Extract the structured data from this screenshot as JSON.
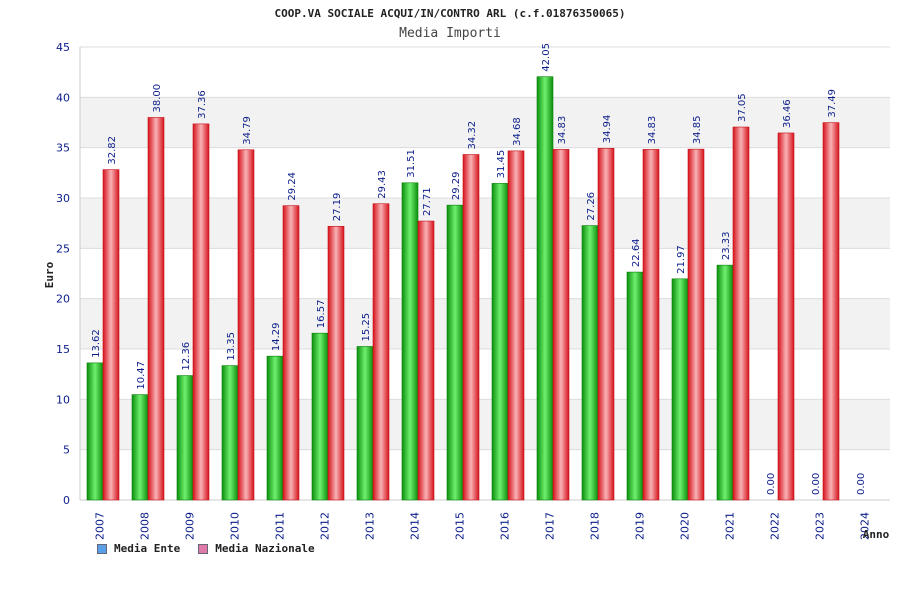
{
  "chart_data": {
    "type": "bar",
    "title": "COOP.VA SOCIALE ACQUI/IN/CONTRO ARL (c.f.01876350065)",
    "subtitle": "Media Importi",
    "ylabel": "Euro",
    "xlabel": "Anno",
    "ylim": [
      0,
      45
    ],
    "yticks": [
      0,
      5,
      10,
      15,
      20,
      25,
      30,
      35,
      40,
      45
    ],
    "grid": true,
    "legend_position": "bottom-left",
    "categories": [
      "2007",
      "2008",
      "2009",
      "2010",
      "2011",
      "2012",
      "2013",
      "2014",
      "2015",
      "2016",
      "2017",
      "2018",
      "2019",
      "2020",
      "2021",
      "2022",
      "2023",
      "2024"
    ],
    "series": [
      {
        "name": "Media Ente",
        "color": "#1fbf1f",
        "legend_color": "#5aa0e8",
        "values": [
          13.62,
          10.47,
          12.36,
          13.35,
          14.29,
          16.57,
          15.25,
          31.51,
          29.29,
          31.45,
          42.05,
          27.26,
          22.64,
          21.97,
          23.33,
          0.0,
          0.0,
          0.0
        ],
        "labels": [
          "13.62",
          "10.47",
          "12.36",
          "13.35",
          "14.29",
          "16.57",
          "15.25",
          "31.51",
          "29.29",
          "31.45",
          "42.05",
          "27.26",
          "22.64",
          "21.97",
          "23.33",
          "0.00",
          "0.00",
          "0.00"
        ]
      },
      {
        "name": "Media Nazionale",
        "color": "#e8222a",
        "legend_color": "#e07aa8",
        "values": [
          32.82,
          38.0,
          37.36,
          34.79,
          29.24,
          27.19,
          29.43,
          27.71,
          34.32,
          34.68,
          34.83,
          34.94,
          34.83,
          34.85,
          37.05,
          36.46,
          37.49,
          null
        ],
        "labels": [
          "32.82",
          "38.00",
          "37.36",
          "34.79",
          "29.24",
          "27.19",
          "29.43",
          "27.71",
          "34.32",
          "34.68",
          "34.83",
          "34.94",
          "34.83",
          "34.85",
          "37.05",
          "36.46",
          "37.49",
          ""
        ]
      }
    ]
  }
}
